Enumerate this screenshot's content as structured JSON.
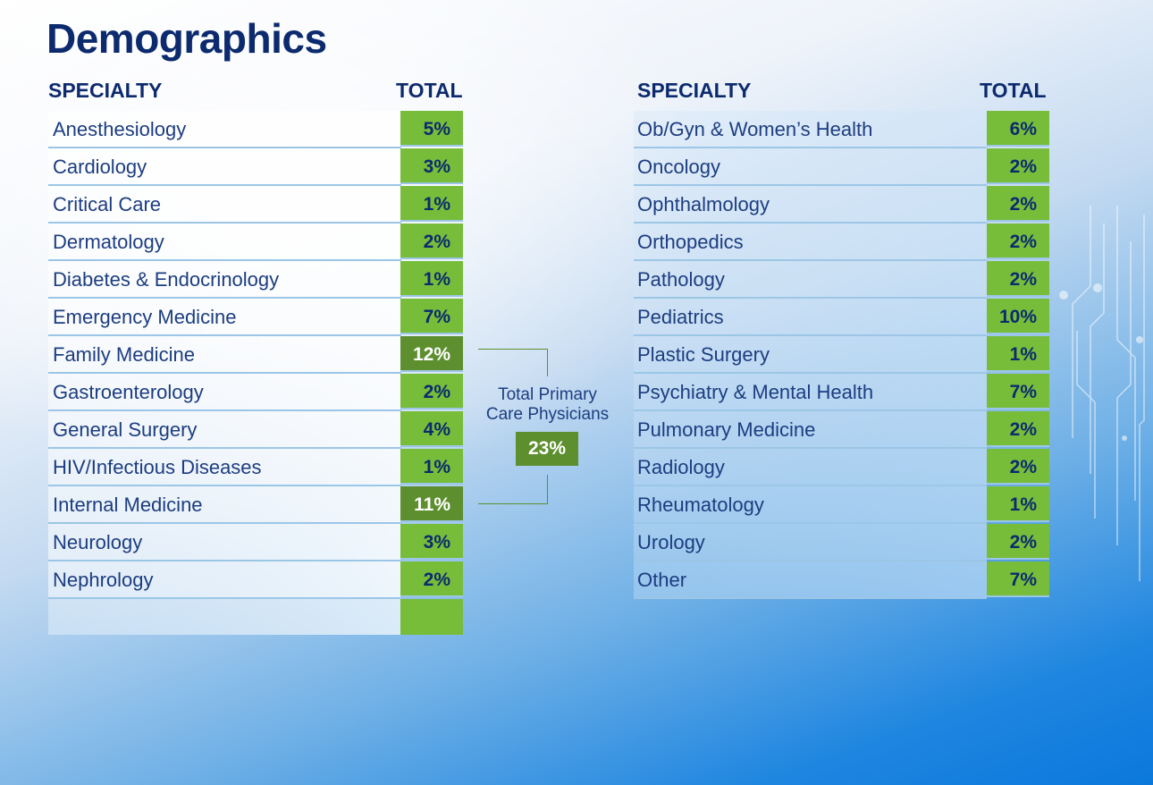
{
  "page": {
    "title": "Demographics"
  },
  "headers": {
    "specialty": "SPECIALTY",
    "total": "TOTAL"
  },
  "colors": {
    "title": "#0c2a6e",
    "value_cell": "#77bd3a",
    "highlight_cell": "#5d8f2f",
    "row_text": "#1c3d80"
  },
  "left_table": [
    {
      "specialty": "Anesthesiology",
      "total": "5%"
    },
    {
      "specialty": "Cardiology",
      "total": "3%"
    },
    {
      "specialty": "Critical Care",
      "total": "1%"
    },
    {
      "specialty": "Dermatology",
      "total": "2%"
    },
    {
      "specialty": "Diabetes & Endocrinology",
      "total": "1%"
    },
    {
      "specialty": "Emergency Medicine",
      "total": "7%"
    },
    {
      "specialty": "Family Medicine",
      "total": "12%",
      "highlight": true
    },
    {
      "specialty": "Gastroenterology",
      "total": "2%"
    },
    {
      "specialty": "General Surgery",
      "total": "4%"
    },
    {
      "specialty": "HIV/Infectious Diseases",
      "total": "1%"
    },
    {
      "specialty": "Internal Medicine",
      "total": "11%",
      "highlight": true
    },
    {
      "specialty": "Neurology",
      "total": "3%"
    },
    {
      "specialty": "Nephrology",
      "total": "2%"
    }
  ],
  "right_table": [
    {
      "specialty": "Ob/Gyn & Women’s Health",
      "total": "6%"
    },
    {
      "specialty": "Oncology",
      "total": "2%"
    },
    {
      "specialty": "Ophthalmology",
      "total": "2%"
    },
    {
      "specialty": "Orthopedics",
      "total": "2%"
    },
    {
      "specialty": "Pathology",
      "total": "2%"
    },
    {
      "specialty": "Pediatrics",
      "total": "10%"
    },
    {
      "specialty": "Plastic Surgery",
      "total": "1%"
    },
    {
      "specialty": "Psychiatry & Mental Health",
      "total": "7%"
    },
    {
      "specialty": "Pulmonary Medicine",
      "total": "2%"
    },
    {
      "specialty": "Radiology",
      "total": "2%"
    },
    {
      "specialty": "Rheumatology",
      "total": "1%"
    },
    {
      "specialty": "Urology",
      "total": "2%"
    },
    {
      "specialty": "Other",
      "total": "7%"
    }
  ],
  "primary_care": {
    "label_line1": "Total Primary",
    "label_line2": "Care Physicians",
    "total": "23%"
  }
}
